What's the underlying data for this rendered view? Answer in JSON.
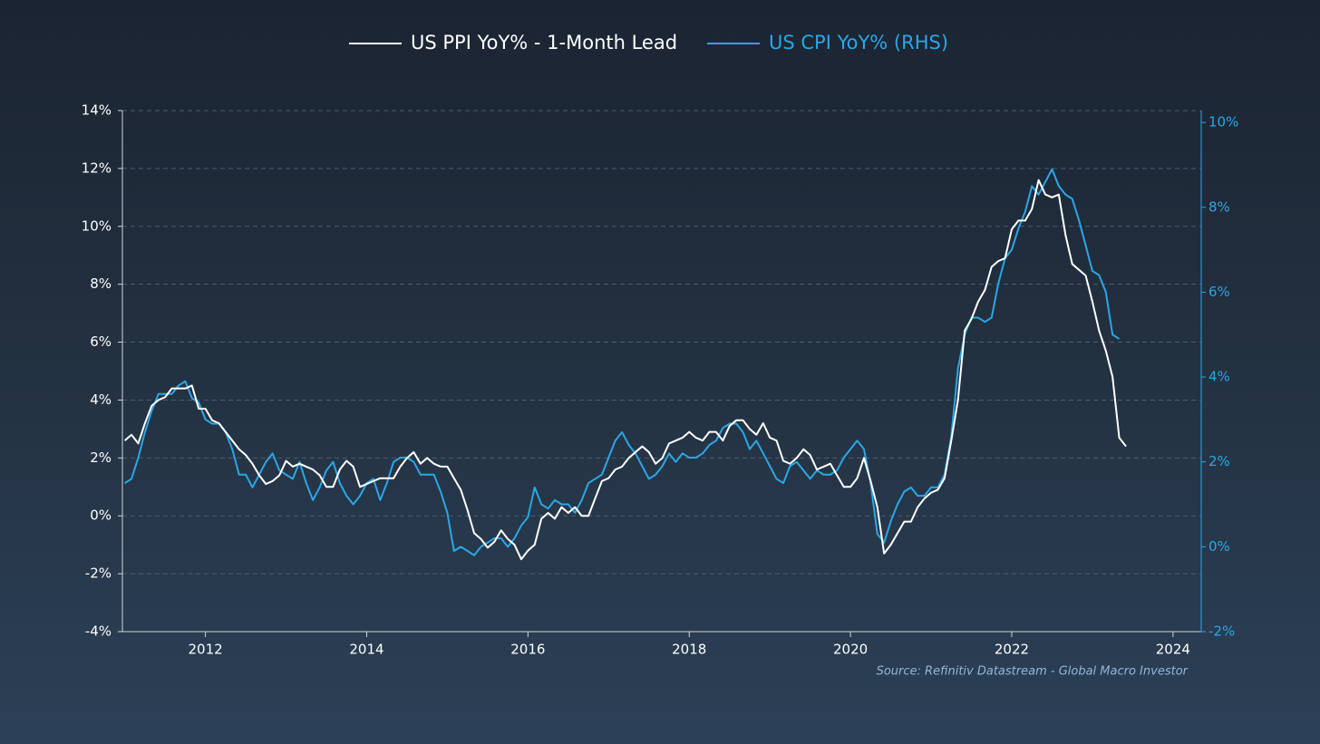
{
  "chart_data": {
    "type": "line",
    "annotation": "Source: Refinitiv Datastream - Global Macro Investor",
    "x": [
      2011,
      2011.083,
      2011.167,
      2011.25,
      2011.333,
      2011.417,
      2011.5,
      2011.583,
      2011.667,
      2011.75,
      2011.833,
      2011.917,
      2012,
      2012.083,
      2012.167,
      2012.25,
      2012.333,
      2012.417,
      2012.5,
      2012.583,
      2012.667,
      2012.75,
      2012.833,
      2012.917,
      2013,
      2013.083,
      2013.167,
      2013.25,
      2013.333,
      2013.417,
      2013.5,
      2013.583,
      2013.667,
      2013.75,
      2013.833,
      2013.917,
      2014,
      2014.083,
      2014.167,
      2014.25,
      2014.333,
      2014.417,
      2014.5,
      2014.583,
      2014.667,
      2014.75,
      2014.833,
      2014.917,
      2015,
      2015.083,
      2015.167,
      2015.25,
      2015.333,
      2015.417,
      2015.5,
      2015.583,
      2015.667,
      2015.75,
      2015.833,
      2015.917,
      2016,
      2016.083,
      2016.167,
      2016.25,
      2016.333,
      2016.417,
      2016.5,
      2016.583,
      2016.667,
      2016.75,
      2016.833,
      2016.917,
      2017,
      2017.083,
      2017.167,
      2017.25,
      2017.333,
      2017.417,
      2017.5,
      2017.583,
      2017.667,
      2017.75,
      2017.833,
      2017.917,
      2018,
      2018.083,
      2018.167,
      2018.25,
      2018.333,
      2018.417,
      2018.5,
      2018.583,
      2018.667,
      2018.75,
      2018.833,
      2018.917,
      2019,
      2019.083,
      2019.167,
      2019.25,
      2019.333,
      2019.417,
      2019.5,
      2019.583,
      2019.667,
      2019.75,
      2019.833,
      2019.917,
      2020,
      2020.083,
      2020.167,
      2020.25,
      2020.333,
      2020.417,
      2020.5,
      2020.583,
      2020.667,
      2020.75,
      2020.833,
      2020.917,
      2021,
      2021.083,
      2021.167,
      2021.25,
      2021.333,
      2021.417,
      2021.5,
      2021.583,
      2021.667,
      2021.75,
      2021.833,
      2021.917,
      2022,
      2022.083,
      2022.167,
      2022.25,
      2022.333,
      2022.417,
      2022.5,
      2022.583,
      2022.667,
      2022.75,
      2022.833,
      2022.917,
      2023,
      2023.083,
      2023.167,
      2023.25,
      2023.333,
      2023.417
    ],
    "series": [
      {
        "name": "US PPI YoY% - 1-Month Lead",
        "color": "#ffffff",
        "values": [
          2.6,
          2.8,
          2.5,
          3.2,
          3.8,
          4.0,
          4.1,
          4.4,
          4.4,
          4.4,
          4.5,
          3.7,
          3.7,
          3.3,
          3.2,
          2.9,
          2.6,
          2.3,
          2.1,
          1.8,
          1.4,
          1.1,
          1.2,
          1.4,
          1.9,
          1.7,
          1.8,
          1.7,
          1.6,
          1.4,
          1.0,
          1.0,
          1.6,
          1.9,
          1.7,
          1.0,
          1.1,
          1.2,
          1.3,
          1.3,
          1.3,
          1.7,
          2.0,
          2.2,
          1.8,
          2.0,
          1.8,
          1.7,
          1.7,
          1.3,
          0.9,
          0.2,
          -0.6,
          -0.8,
          -1.1,
          -0.9,
          -0.5,
          -0.8,
          -1.0,
          -1.5,
          -1.2,
          -1.0,
          -0.1,
          0.1,
          -0.1,
          0.3,
          0.1,
          0.3,
          0.0,
          0.0,
          0.6,
          1.2,
          1.3,
          1.6,
          1.7,
          2.0,
          2.2,
          2.4,
          2.2,
          1.8,
          2.0,
          2.5,
          2.6,
          2.7,
          2.9,
          2.7,
          2.6,
          2.9,
          2.9,
          2.6,
          3.1,
          3.3,
          3.3,
          3.0,
          2.8,
          3.2,
          2.7,
          2.6,
          1.9,
          1.8,
          2.0,
          2.3,
          2.1,
          1.6,
          1.7,
          1.8,
          1.4,
          1.0,
          1.0,
          1.3,
          2.0,
          1.2,
          0.3,
          -1.3,
          -1.0,
          -0.6,
          -0.2,
          -0.2,
          0.3,
          0.6,
          0.8,
          0.9,
          1.3,
          2.6,
          4.0,
          6.4,
          6.8,
          7.4,
          7.8,
          8.6,
          8.8,
          8.9,
          9.9,
          10.2,
          10.2,
          10.6,
          11.6,
          11.1,
          11.0,
          11.1,
          9.7,
          8.7,
          8.5,
          8.3,
          7.4,
          6.4,
          5.7,
          4.8,
          2.7,
          2.4
        ]
      },
      {
        "name": "US CPI YoY% (RHS)",
        "color": "#2aa7e6",
        "axis": "y2",
        "values": [
          1.5,
          1.6,
          2.1,
          2.7,
          3.2,
          3.6,
          3.6,
          3.6,
          3.8,
          3.9,
          3.5,
          3.4,
          3.0,
          2.9,
          2.9,
          2.7,
          2.3,
          1.7,
          1.7,
          1.4,
          1.7,
          2.0,
          2.2,
          1.8,
          1.7,
          1.6,
          2.0,
          1.5,
          1.1,
          1.4,
          1.8,
          2.0,
          1.5,
          1.2,
          1.0,
          1.2,
          1.5,
          1.6,
          1.1,
          1.5,
          2.0,
          2.1,
          2.1,
          2.0,
          1.7,
          1.7,
          1.7,
          1.3,
          0.8,
          -0.1,
          0.0,
          -0.1,
          -0.2,
          0.0,
          0.1,
          0.2,
          0.2,
          0.0,
          0.2,
          0.5,
          0.7,
          1.4,
          1.0,
          0.9,
          1.1,
          1.0,
          1.0,
          0.8,
          1.1,
          1.5,
          1.6,
          1.7,
          2.1,
          2.5,
          2.7,
          2.4,
          2.2,
          1.9,
          1.6,
          1.7,
          1.9,
          2.2,
          2.0,
          2.2,
          2.1,
          2.1,
          2.2,
          2.4,
          2.5,
          2.8,
          2.9,
          2.9,
          2.7,
          2.3,
          2.5,
          2.2,
          1.9,
          1.6,
          1.5,
          1.9,
          2.0,
          1.8,
          1.6,
          1.8,
          1.7,
          1.7,
          1.8,
          2.1,
          2.3,
          2.5,
          2.3,
          1.5,
          0.3,
          0.1,
          0.6,
          1.0,
          1.3,
          1.4,
          1.2,
          1.2,
          1.4,
          1.4,
          1.7,
          2.6,
          4.2,
          5.0,
          5.4,
          5.4,
          5.3,
          5.4,
          6.2,
          6.8,
          7.0,
          7.5,
          7.9,
          8.5,
          8.3,
          8.6,
          8.9,
          8.5,
          8.3,
          8.2,
          7.7,
          7.1,
          6.5,
          6.4,
          6.0,
          5.0,
          4.9,
          null
        ]
      }
    ],
    "xlim": [
      2010.97,
      2024.35
    ],
    "xticks": [
      2012,
      2014,
      2016,
      2018,
      2020,
      2022,
      2024
    ],
    "ylim": [
      -4,
      14
    ],
    "yticks": [
      {
        "value": -4,
        "label": "-4%"
      },
      {
        "value": -2,
        "label": "-2%"
      },
      {
        "value": 0,
        "label": "0%"
      },
      {
        "value": 2,
        "label": "2%"
      },
      {
        "value": 4,
        "label": "4%"
      },
      {
        "value": 6,
        "label": "6%"
      },
      {
        "value": 8,
        "label": "8%"
      },
      {
        "value": 10,
        "label": "10%"
      },
      {
        "value": 12,
        "label": "12%"
      },
      {
        "value": 14,
        "label": "14%"
      }
    ],
    "y2lim": [
      -2,
      10.28
    ],
    "y2ticks": [
      {
        "value": -2,
        "label": "-2%"
      },
      {
        "value": 0,
        "label": "0%"
      },
      {
        "value": 2,
        "label": "2%"
      },
      {
        "value": 4,
        "label": "4%"
      },
      {
        "value": 6,
        "label": "6%"
      },
      {
        "value": 8,
        "label": "8%"
      },
      {
        "value": 10,
        "label": "10%"
      }
    ],
    "grid": true,
    "legend": "top"
  }
}
